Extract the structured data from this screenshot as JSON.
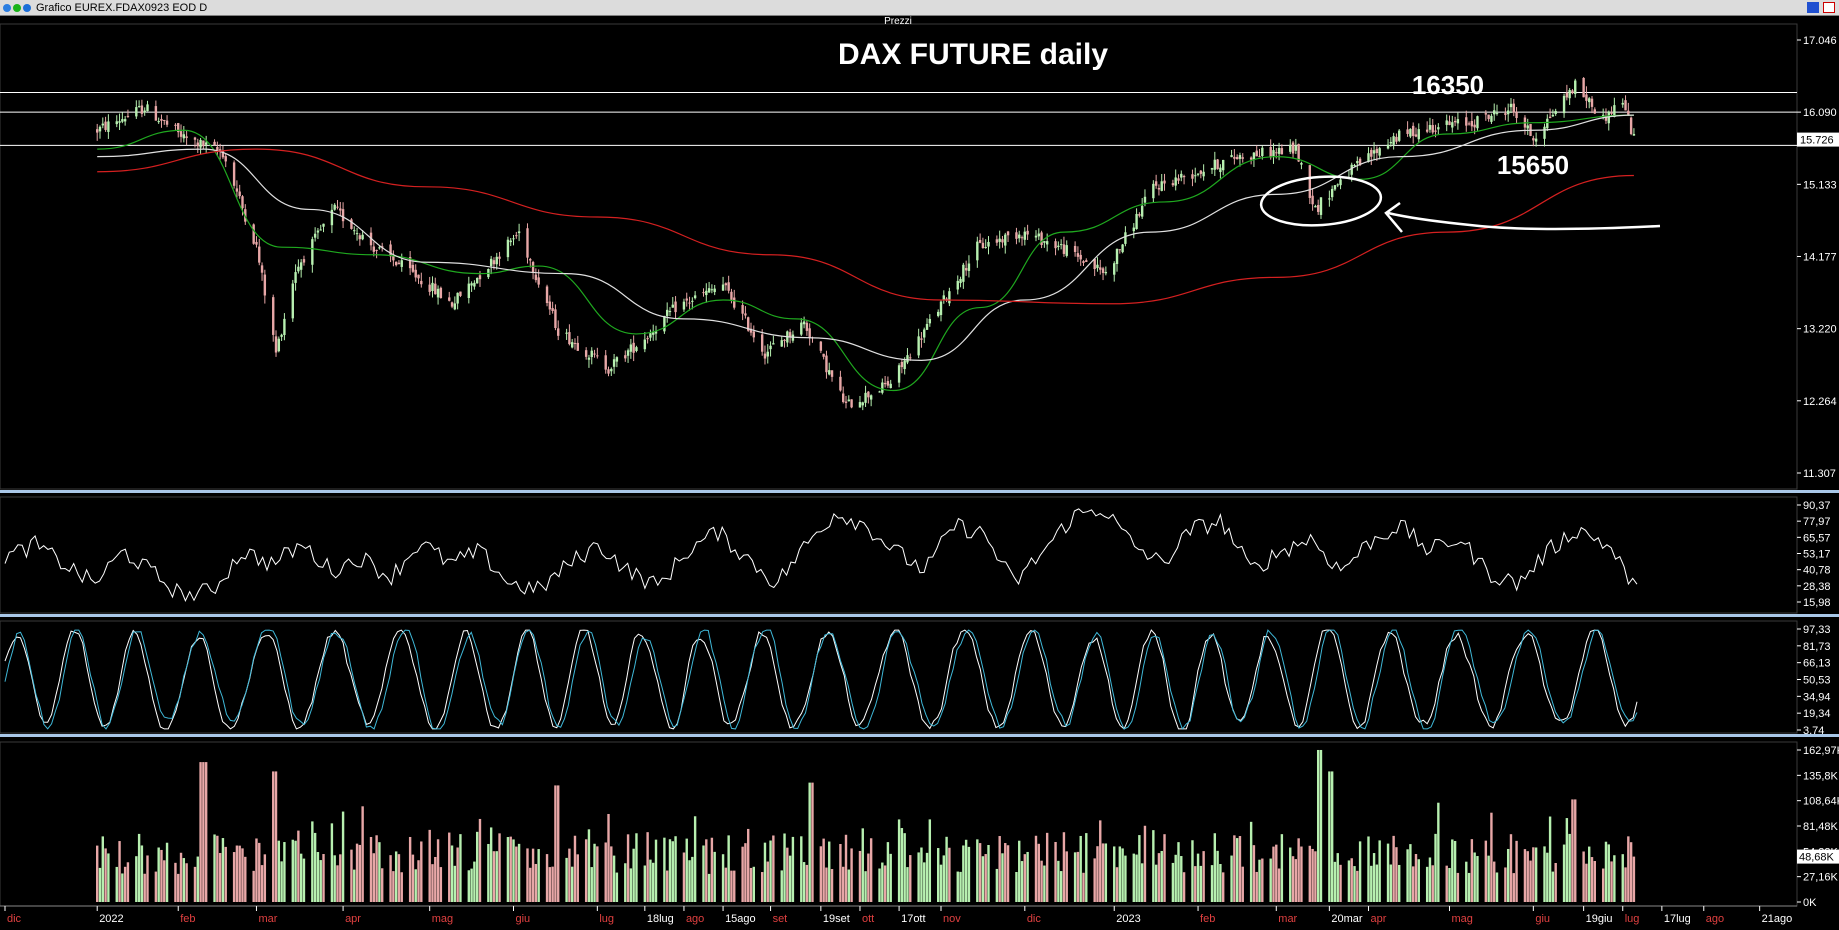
{
  "window": {
    "title": "Grafico EUREX.FDAX0923 EOD D",
    "pane_label": "Prezzi"
  },
  "colors": {
    "up_candle": "#b7f0b0",
    "down_candle": "#e8a7a7",
    "ma_fast": "#1fa81f",
    "ma_mid": "#e0e0e0",
    "ma_slow": "#d42020",
    "osc_line": "#ffffff",
    "stoch_k": "#ffffff",
    "stoch_d": "#3fb8d8",
    "separator": "#a9c7e8"
  },
  "annotations": {
    "title": "DAX FUTURE daily",
    "resistance_label": "16350",
    "support_label": "15650"
  },
  "chart_data": [
    {
      "type": "candlestick",
      "pane": "Prezzi",
      "title": "DAX FUTURE daily",
      "ylim": [
        11307,
        17046
      ],
      "y_ticks": [
        "17.046",
        "16.090",
        "15.133",
        "14.177",
        "13.220",
        "12.264",
        "11.307"
      ],
      "last_price_label": "15.726",
      "last_price": 15726,
      "horizontal_lines": [
        16350,
        16090,
        15650
      ],
      "close_path": [
        [
          "2022-01-03",
          15850
        ],
        [
          "2022-01-20",
          16150
        ],
        [
          "2022-02-03",
          15750
        ],
        [
          "2022-02-17",
          15550
        ],
        [
          "2022-03-01",
          14300
        ],
        [
          "2022-03-08",
          12900
        ],
        [
          "2022-03-15",
          14000
        ],
        [
          "2022-03-29",
          14800
        ],
        [
          "2022-04-12",
          14300
        ],
        [
          "2022-04-26",
          13950
        ],
        [
          "2022-05-10",
          13550
        ],
        [
          "2022-05-24",
          14100
        ],
        [
          "2022-06-03",
          14500
        ],
        [
          "2022-06-17",
          13200
        ],
        [
          "2022-07-05",
          12700
        ],
        [
          "2022-07-18",
          13100
        ],
        [
          "2022-07-29",
          13500
        ],
        [
          "2022-08-15",
          13800
        ],
        [
          "2022-08-30",
          12900
        ],
        [
          "2022-09-13",
          13300
        ],
        [
          "2022-09-28",
          12200
        ],
        [
          "2022-10-14",
          12500
        ],
        [
          "2022-10-28",
          13300
        ],
        [
          "2022-11-14",
          14300
        ],
        [
          "2022-11-30",
          14500
        ],
        [
          "2022-12-14",
          14300
        ],
        [
          "2022-12-30",
          13950
        ],
        [
          "2023-01-16",
          15100
        ],
        [
          "2023-02-01",
          15300
        ],
        [
          "2023-02-15",
          15500
        ],
        [
          "2023-03-08",
          15600
        ],
        [
          "2023-03-15",
          14800
        ],
        [
          "2023-03-24",
          15200
        ],
        [
          "2023-04-12",
          15750
        ],
        [
          "2023-04-26",
          15900
        ],
        [
          "2023-05-10",
          15950
        ],
        [
          "2023-05-24",
          16150
        ],
        [
          "2023-06-01",
          15750
        ],
        [
          "2023-06-16",
          16450
        ],
        [
          "2023-06-26",
          16000
        ],
        [
          "2023-07-03",
          16250
        ],
        [
          "2023-07-07",
          15726
        ]
      ],
      "moving_averages": [
        {
          "color": "ma_fast",
          "points": [
            [
              "2022-01-03",
              15600
            ],
            [
              "2022-02-03",
              15850
            ],
            [
              "2022-03-10",
              14300
            ],
            [
              "2022-04-12",
              14200
            ],
            [
              "2022-05-20",
              13950
            ],
            [
              "2022-06-10",
              14050
            ],
            [
              "2022-07-15",
              13150
            ],
            [
              "2022-08-15",
              13600
            ],
            [
              "2022-09-10",
              13350
            ],
            [
              "2022-10-15",
              12400
            ],
            [
              "2022-11-15",
              13500
            ],
            [
              "2022-12-15",
              14500
            ],
            [
              "2023-01-20",
              14900
            ],
            [
              "2023-03-01",
              15500
            ],
            [
              "2023-03-31",
              15200
            ],
            [
              "2023-05-01",
              15800
            ],
            [
              "2023-06-01",
              15950
            ],
            [
              "2023-07-07",
              16050
            ]
          ]
        },
        {
          "color": "ma_mid",
          "points": [
            [
              "2022-01-03",
              15500
            ],
            [
              "2022-02-10",
              15600
            ],
            [
              "2022-03-20",
              14800
            ],
            [
              "2022-05-01",
              14100
            ],
            [
              "2022-06-20",
              13950
            ],
            [
              "2022-08-01",
              13350
            ],
            [
              "2022-09-15",
              13100
            ],
            [
              "2022-10-25",
              12800
            ],
            [
              "2022-12-01",
              13600
            ],
            [
              "2023-01-15",
              14500
            ],
            [
              "2023-03-01",
              15000
            ],
            [
              "2023-04-15",
              15500
            ],
            [
              "2023-06-01",
              15850
            ],
            [
              "2023-07-07",
              16050
            ]
          ]
        },
        {
          "color": "ma_slow",
          "points": [
            [
              "2022-01-03",
              15300
            ],
            [
              "2022-03-01",
              15600
            ],
            [
              "2022-05-01",
              15100
            ],
            [
              "2022-07-01",
              14700
            ],
            [
              "2022-09-01",
              14200
            ],
            [
              "2022-11-01",
              13600
            ],
            [
              "2023-01-01",
              13550
            ],
            [
              "2023-03-01",
              13900
            ],
            [
              "2023-05-01",
              14500
            ],
            [
              "2023-07-07",
              15250
            ]
          ]
        }
      ]
    },
    {
      "type": "line",
      "pane": "oscillator",
      "ylim": [
        15.98,
        90.37
      ],
      "y_ticks": [
        "90,37",
        "77,97",
        "65,57",
        "53,17",
        "40,78",
        "28,38",
        "15,98"
      ],
      "shape": [
        50,
        60,
        45,
        30,
        55,
        38,
        20,
        25,
        55,
        45,
        60,
        40,
        50,
        35,
        62,
        45,
        55,
        30,
        25,
        45,
        60,
        40,
        28,
        55,
        70,
        50,
        30,
        60,
        85,
        75,
        55,
        40,
        75,
        68,
        30,
        55,
        82,
        88,
        60,
        45,
        72,
        78,
        40,
        55,
        65,
        40,
        62,
        75,
        55,
        65,
        38,
        30,
        55,
        72,
        60,
        25
      ],
      "shape_range": [
        2022.0,
        2023.52
      ]
    },
    {
      "type": "line",
      "pane": "stochastic",
      "ylim": [
        3.74,
        97.33
      ],
      "y_ticks": [
        "97,33",
        "81,73",
        "66,13",
        "50,53",
        "34,94",
        "19,34",
        "3,74"
      ],
      "series": [
        {
          "color": "stoch_k",
          "cycles": 26,
          "phase": 0.3
        },
        {
          "color": "stoch_d",
          "cycles": 26,
          "phase": 0.0
        }
      ],
      "last_k": 30,
      "last_d": 20
    },
    {
      "type": "bar",
      "pane": "volume",
      "ylim": [
        0,
        162970
      ],
      "y_ticks": [
        "162,97K",
        "135,8K",
        "108,64K",
        "81,48K",
        "54,32K",
        "27,16K",
        "0K"
      ],
      "last_volume_label": "48,68K",
      "last_volume": 48680,
      "peaks": [
        [
          "2022-02-10",
          150000
        ],
        [
          "2022-03-07",
          140000
        ],
        [
          "2022-06-17",
          125000
        ],
        [
          "2022-09-16",
          128000
        ],
        [
          "2023-03-17",
          163000
        ],
        [
          "2023-03-20",
          140000
        ],
        [
          "2023-06-16",
          110000
        ]
      ]
    }
  ],
  "x_axis": {
    "ticks": [
      {
        "label": "dic",
        "date": "2021-12-01"
      },
      {
        "label": "2022",
        "date": "2022-01-03"
      },
      {
        "label": "feb",
        "date": "2022-02-01"
      },
      {
        "label": "mar",
        "date": "2022-03-01"
      },
      {
        "label": "apr",
        "date": "2022-04-01"
      },
      {
        "label": "mag",
        "date": "2022-05-02"
      },
      {
        "label": "giu",
        "date": "2022-06-01"
      },
      {
        "label": "lug",
        "date": "2022-07-01"
      },
      {
        "label": "18lug",
        "date": "2022-07-18"
      },
      {
        "label": "ago",
        "date": "2022-08-01"
      },
      {
        "label": "15ago",
        "date": "2022-08-15"
      },
      {
        "label": "set",
        "date": "2022-09-01"
      },
      {
        "label": "19set",
        "date": "2022-09-19"
      },
      {
        "label": "ott",
        "date": "2022-10-03"
      },
      {
        "label": "17ott",
        "date": "2022-10-17"
      },
      {
        "label": "nov",
        "date": "2022-11-01"
      },
      {
        "label": "dic",
        "date": "2022-12-01"
      },
      {
        "label": "2023",
        "date": "2023-01-02"
      },
      {
        "label": "feb",
        "date": "2023-02-01"
      },
      {
        "label": "mar",
        "date": "2023-03-01"
      },
      {
        "label": "20mar",
        "date": "2023-03-20"
      },
      {
        "label": "apr",
        "date": "2023-04-03"
      },
      {
        "label": "mag",
        "date": "2023-05-02"
      },
      {
        "label": "giu",
        "date": "2023-06-01"
      },
      {
        "label": "19giu",
        "date": "2023-06-19"
      },
      {
        "label": "lug",
        "date": "2023-07-03"
      },
      {
        "label": "17lug",
        "date": "2023-07-17"
      },
      {
        "label": "ago",
        "date": "2023-08-01"
      },
      {
        "label": "21ago",
        "date": "2023-08-21"
      }
    ]
  }
}
